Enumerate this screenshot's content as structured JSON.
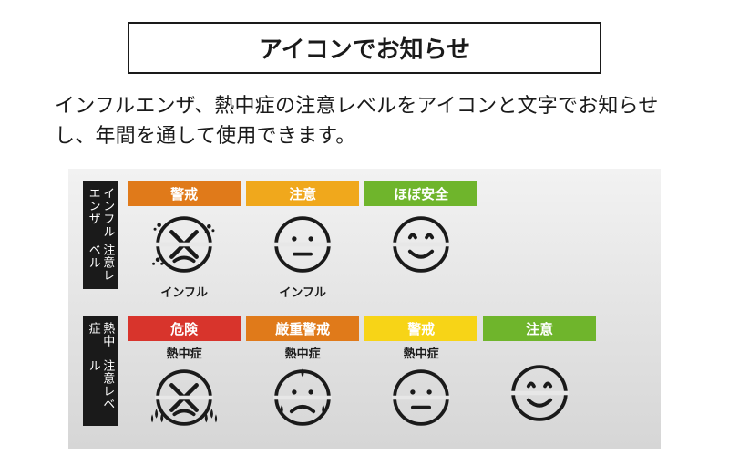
{
  "title": "アイコンでお知らせ",
  "description": "インフルエンザ、熱中症の注意レベルをアイコンと文字でお知らせし、年間を通して使用できます。",
  "colors": {
    "darkorange": "#e07a1a",
    "amber": "#f0a81c",
    "green": "#6fb52c",
    "red": "#d8342c",
    "yellow": "#f7d417",
    "black": "#1a1a1a",
    "faceStroke": "#1a1a1a"
  },
  "rows": [
    {
      "vlabel": "インフルエンザ\n注意レベル",
      "cells": [
        {
          "header": "警戒",
          "headerColor": "darkorange",
          "caption": "インフル",
          "captionPos": "below",
          "face": "flu-cross"
        },
        {
          "header": "注意",
          "headerColor": "amber",
          "caption": "インフル",
          "captionPos": "below",
          "face": "neutral"
        },
        {
          "header": "ほぼ安全",
          "headerColor": "green",
          "caption": "",
          "captionPos": "below",
          "face": "smile"
        }
      ]
    },
    {
      "vlabel": "熱中症\n注意レベル",
      "cells": [
        {
          "header": "危険",
          "headerColor": "red",
          "caption": "熱中症",
          "captionPos": "above",
          "face": "heat-cry"
        },
        {
          "header": "厳重警戒",
          "headerColor": "darkorange",
          "caption": "熱中症",
          "captionPos": "above",
          "face": "heat-sweat"
        },
        {
          "header": "警戒",
          "headerColor": "yellow",
          "caption": "熱中症",
          "captionPos": "above",
          "face": "neutral"
        },
        {
          "header": "注意",
          "headerColor": "green",
          "caption": "",
          "captionPos": "above",
          "face": "smile"
        }
      ]
    }
  ]
}
